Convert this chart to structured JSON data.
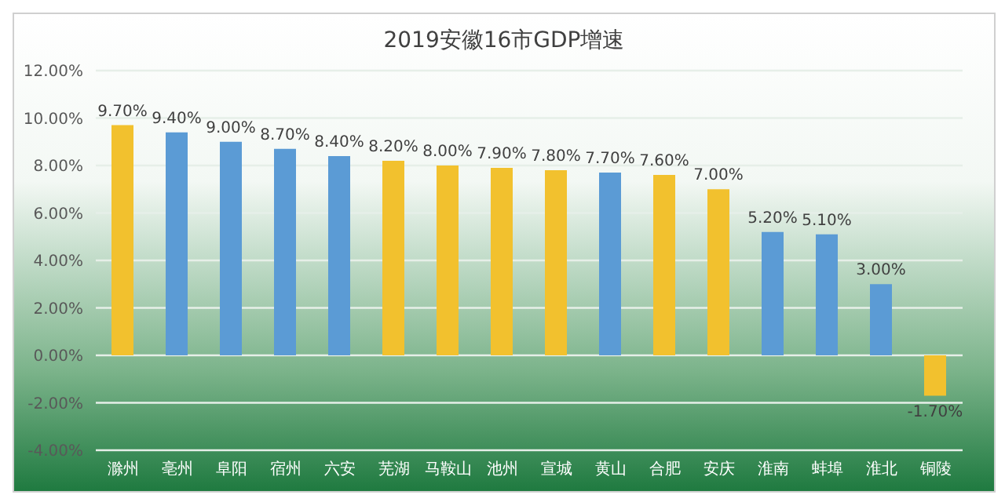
{
  "chart_data": {
    "type": "bar",
    "title": "2019安徽16市GDP增速",
    "categories": [
      "滁州",
      "亳州",
      "阜阳",
      "宿州",
      "六安",
      "芜湖",
      "马鞍山",
      "池州",
      "宣城",
      "黄山",
      "合肥",
      "安庆",
      "淮南",
      "蚌埠",
      "淮北",
      "铜陵"
    ],
    "values": [
      9.7,
      9.4,
      9.0,
      8.7,
      8.4,
      8.2,
      8.0,
      7.9,
      7.8,
      7.7,
      7.6,
      7.0,
      5.2,
      5.1,
      3.0,
      -1.7
    ],
    "value_labels": [
      "9.70%",
      "9.40%",
      "9.00%",
      "8.70%",
      "8.40%",
      "8.20%",
      "8.00%",
      "7.90%",
      "7.80%",
      "7.70%",
      "7.60%",
      "7.00%",
      "5.20%",
      "5.10%",
      "3.00%",
      "-1.70%"
    ],
    "colors": [
      "#f2c12e",
      "#5b9bd5",
      "#5b9bd5",
      "#5b9bd5",
      "#5b9bd5",
      "#f2c12e",
      "#f2c12e",
      "#f2c12e",
      "#f2c12e",
      "#5b9bd5",
      "#f2c12e",
      "#f2c12e",
      "#5b9bd5",
      "#5b9bd5",
      "#5b9bd5",
      "#f2c12e"
    ],
    "ylim": [
      -4,
      12
    ],
    "yticks": [
      {
        "value": -4,
        "label": "-4.00%"
      },
      {
        "value": -2,
        "label": "-2.00%"
      },
      {
        "value": 0,
        "label": "0.00%"
      },
      {
        "value": 2,
        "label": "2.00%"
      },
      {
        "value": 4,
        "label": "4.00%"
      },
      {
        "value": 6,
        "label": "6.00%"
      },
      {
        "value": 8,
        "label": "8.00%"
      },
      {
        "value": 10,
        "label": "10.00%"
      },
      {
        "value": 12,
        "label": "12.00%"
      }
    ],
    "grid": "y"
  }
}
